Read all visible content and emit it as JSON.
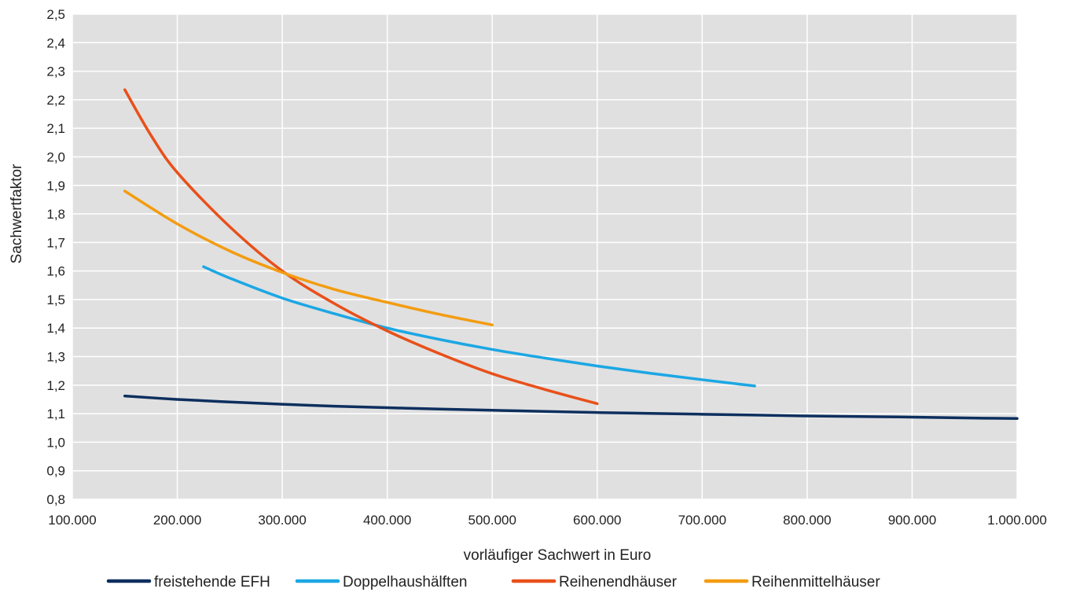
{
  "chart_data": {
    "type": "line",
    "title": "",
    "xlabel": "vorläufiger Sachwert in Euro",
    "ylabel": "Sachwertfaktor",
    "xlim": [
      100000,
      1000000
    ],
    "ylim": [
      0.8,
      2.5
    ],
    "x_ticks": [
      100000,
      200000,
      300000,
      400000,
      500000,
      600000,
      700000,
      800000,
      900000,
      1000000
    ],
    "x_tick_labels": [
      "100.000",
      "200.000",
      "300.000",
      "400.000",
      "500.000",
      "600.000",
      "700.000",
      "800.000",
      "900.000",
      "1.000.000"
    ],
    "y_ticks": [
      0.8,
      0.9,
      1.0,
      1.1,
      1.2,
      1.3,
      1.4,
      1.5,
      1.6,
      1.7,
      1.8,
      1.9,
      2.0,
      2.1,
      2.2,
      2.3,
      2.4,
      2.5
    ],
    "y_tick_labels": [
      "0,8",
      "0,9",
      "1,0",
      "1,1",
      "1,2",
      "1,3",
      "1,4",
      "1,5",
      "1,6",
      "1,7",
      "1,8",
      "1,9",
      "2,0",
      "2,1",
      "2,2",
      "2,3",
      "2,4",
      "2,5"
    ],
    "grid": true,
    "legend_position": "bottom",
    "plot_background": "#e0e0e0",
    "series": [
      {
        "name": "freistehende EFH",
        "color": "#0d2f5e",
        "x": [
          150000,
          200000,
          250000,
          300000,
          350000,
          400000,
          450000,
          500000,
          550000,
          600000,
          650000,
          700000,
          750000,
          800000,
          850000,
          900000,
          950000,
          1000000
        ],
        "y": [
          1.162,
          1.15,
          1.141,
          1.133,
          1.126,
          1.121,
          1.116,
          1.112,
          1.108,
          1.104,
          1.101,
          1.098,
          1.095,
          1.092,
          1.09,
          1.088,
          1.085,
          1.083
        ]
      },
      {
        "name": "Doppelhaushälften",
        "color": "#1ca7e4",
        "x": [
          225000,
          250000,
          300000,
          350000,
          400000,
          450000,
          500000,
          550000,
          600000,
          650000,
          700000,
          750000
        ],
        "y": [
          1.615,
          1.575,
          1.505,
          1.45,
          1.4,
          1.36,
          1.325,
          1.295,
          1.267,
          1.242,
          1.219,
          1.197
        ]
      },
      {
        "name": "Reihenendhäuser",
        "color": "#e8501a",
        "x": [
          150000,
          175000,
          200000,
          250000,
          300000,
          350000,
          400000,
          450000,
          500000,
          550000,
          600000
        ],
        "y": [
          2.235,
          2.075,
          1.945,
          1.755,
          1.6,
          1.485,
          1.39,
          1.31,
          1.24,
          1.185,
          1.135
        ]
      },
      {
        "name": "Reihenmittelhäuser",
        "color": "#f39c11",
        "x": [
          150000,
          200000,
          250000,
          300000,
          350000,
          400000,
          450000,
          500000
        ],
        "y": [
          1.88,
          1.765,
          1.67,
          1.595,
          1.535,
          1.49,
          1.448,
          1.411
        ]
      }
    ]
  }
}
